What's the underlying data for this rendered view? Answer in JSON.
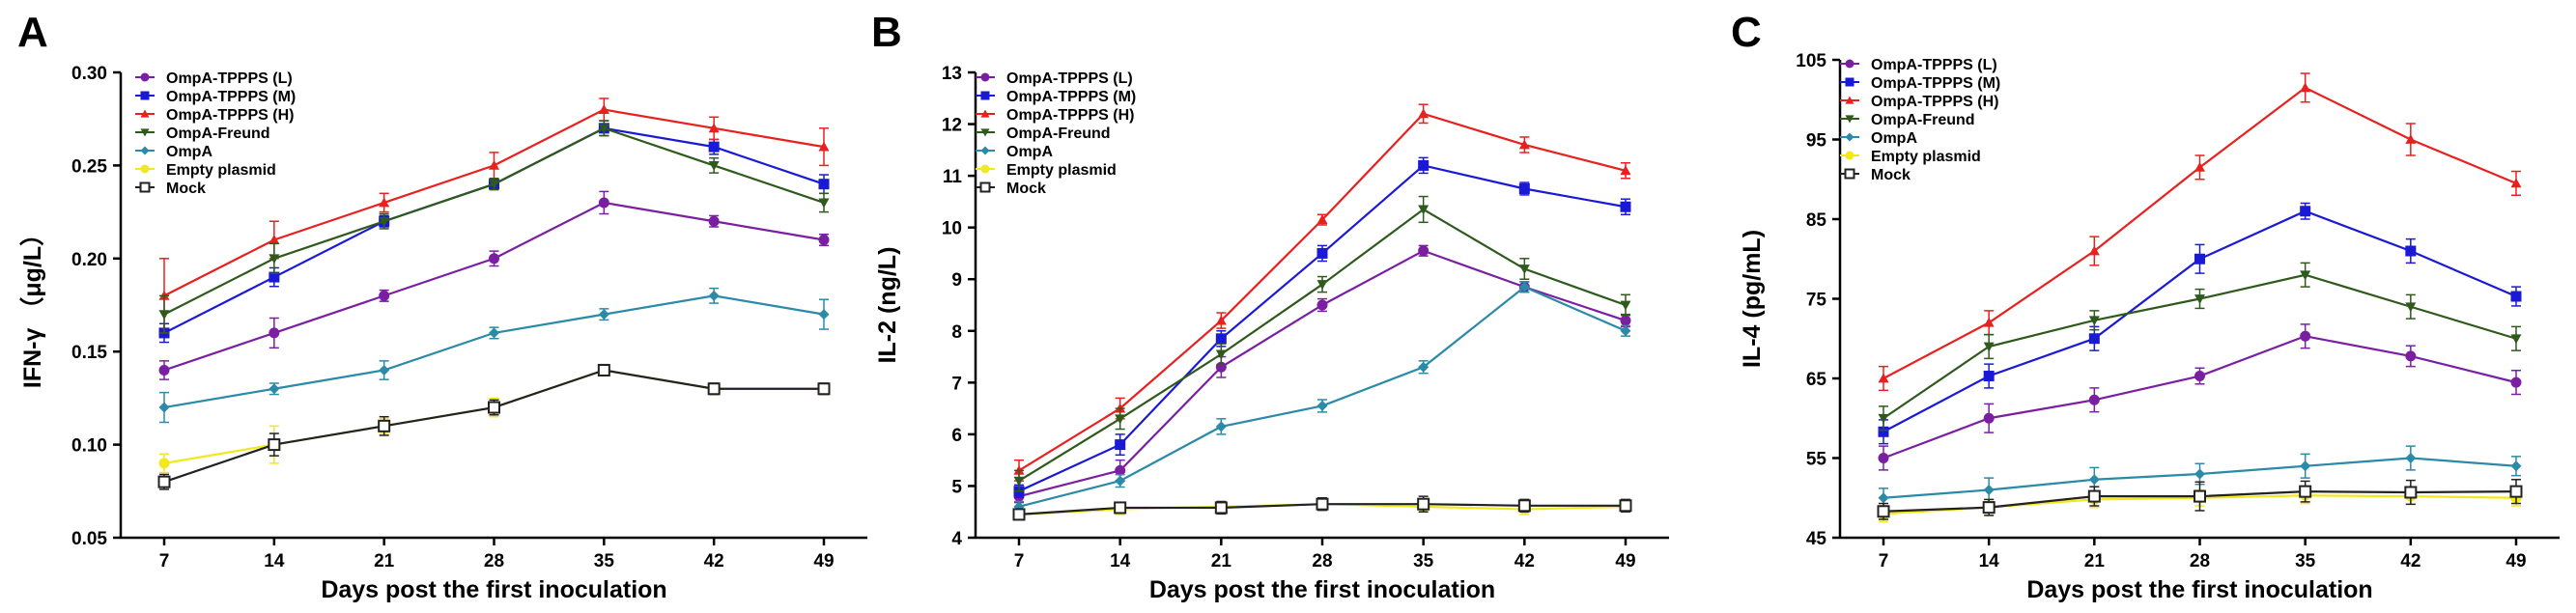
{
  "chart_data": [
    {
      "panel": "A",
      "type": "line",
      "xlabel": "Days post the first inoculation",
      "ylabel": "IFN-γ （μg/L）",
      "categories": [
        "7",
        "14",
        "21",
        "28",
        "35",
        "42",
        "49"
      ],
      "ylim": [
        0.05,
        0.3
      ],
      "yticks": [
        "0.05",
        "0.10",
        "0.15",
        "0.20",
        "0.25",
        "0.30"
      ],
      "ytick_values": [
        0.05,
        0.1,
        0.15,
        0.2,
        0.25,
        0.3
      ],
      "series": [
        {
          "name": "OmpA-TPPPS (L)",
          "color": "#7b1fa2",
          "marker": "circle",
          "values": [
            0.14,
            0.16,
            0.18,
            0.2,
            0.23,
            0.22,
            0.21
          ],
          "errors": [
            0.005,
            0.008,
            0.003,
            0.004,
            0.006,
            0.003,
            0.003
          ]
        },
        {
          "name": "OmpA-TPPPS (M)",
          "color": "#1a1ad6",
          "marker": "square",
          "values": [
            0.16,
            0.19,
            0.22,
            0.24,
            0.27,
            0.26,
            0.24
          ],
          "errors": [
            0.005,
            0.005,
            0.003,
            0.003,
            0.004,
            0.004,
            0.005
          ]
        },
        {
          "name": "OmpA-TPPPS (H)",
          "color": "#e8201e",
          "marker": "triangle",
          "values": [
            0.18,
            0.21,
            0.23,
            0.25,
            0.28,
            0.27,
            0.26
          ],
          "errors": [
            0.02,
            0.01,
            0.005,
            0.007,
            0.006,
            0.006,
            0.01
          ]
        },
        {
          "name": "OmpA-Freund",
          "color": "#2e5a1c",
          "marker": "triangle-down",
          "values": [
            0.17,
            0.2,
            0.22,
            0.24,
            0.27,
            0.25,
            0.23
          ],
          "errors": [
            0.01,
            0.008,
            0.004,
            0.003,
            0.004,
            0.004,
            0.005
          ]
        },
        {
          "name": "OmpA",
          "color": "#2a8aa8",
          "marker": "diamond",
          "values": [
            0.12,
            0.13,
            0.14,
            0.16,
            0.17,
            0.18,
            0.17
          ],
          "errors": [
            0.008,
            0.003,
            0.005,
            0.003,
            0.003,
            0.004,
            0.008
          ]
        },
        {
          "name": "Empty plasmid",
          "color": "#f2e81e",
          "marker": "circle",
          "values": [
            0.09,
            0.1,
            0.11,
            0.12,
            0.14,
            0.13,
            0.13
          ],
          "errors": [
            0.005,
            0.01,
            0.004,
            0.005,
            0.003,
            0.003,
            0.003
          ]
        },
        {
          "name": "Mock",
          "color": "#222222",
          "marker": "square-open",
          "values": [
            0.08,
            0.1,
            0.11,
            0.12,
            0.14,
            0.13,
            0.13
          ],
          "errors": [
            0.004,
            0.006,
            0.005,
            0.004,
            0.003,
            0.003,
            0.003
          ]
        }
      ]
    },
    {
      "panel": "B",
      "type": "line",
      "xlabel": "Days post the first inoculation",
      "ylabel": "IL-2 (ng/L)",
      "categories": [
        "7",
        "14",
        "21",
        "28",
        "35",
        "42",
        "49"
      ],
      "ylim": [
        4,
        13
      ],
      "yticks": [
        "4",
        "5",
        "6",
        "7",
        "8",
        "9",
        "10",
        "11",
        "12",
        "13"
      ],
      "ytick_values": [
        4,
        5,
        6,
        7,
        8,
        9,
        10,
        11,
        12,
        13
      ],
      "series": [
        {
          "name": "OmpA-TPPPS (L)",
          "color": "#7b1fa2",
          "marker": "circle",
          "values": [
            4.8,
            5.3,
            7.3,
            8.5,
            9.55,
            8.85,
            8.2
          ],
          "errors": [
            0.12,
            0.2,
            0.2,
            0.12,
            0.1,
            0.1,
            0.12
          ]
        },
        {
          "name": "OmpA-TPPPS (M)",
          "color": "#1a1ad6",
          "marker": "square",
          "values": [
            4.9,
            5.8,
            7.85,
            9.5,
            11.2,
            10.75,
            10.4
          ],
          "errors": [
            0.12,
            0.2,
            0.15,
            0.15,
            0.15,
            0.12,
            0.15
          ]
        },
        {
          "name": "OmpA-TPPPS (H)",
          "color": "#e8201e",
          "marker": "triangle",
          "values": [
            5.3,
            6.5,
            8.2,
            10.15,
            12.2,
            11.6,
            11.1
          ],
          "errors": [
            0.2,
            0.2,
            0.15,
            0.1,
            0.18,
            0.15,
            0.15
          ]
        },
        {
          "name": "OmpA-Freund",
          "color": "#2e5a1c",
          "marker": "triangle-down",
          "values": [
            5.1,
            6.3,
            7.55,
            8.9,
            10.35,
            9.2,
            8.5
          ],
          "errors": [
            0.2,
            0.2,
            0.2,
            0.15,
            0.25,
            0.2,
            0.2
          ]
        },
        {
          "name": "OmpA",
          "color": "#2a8aa8",
          "marker": "diamond",
          "values": [
            4.6,
            5.1,
            6.15,
            6.55,
            7.3,
            8.85,
            8.0
          ],
          "errors": [
            0.1,
            0.12,
            0.15,
            0.12,
            0.12,
            0.1,
            0.1
          ]
        },
        {
          "name": "Empty plasmid",
          "color": "#f2e81e",
          "marker": "circle",
          "values": [
            4.45,
            4.55,
            4.6,
            4.65,
            4.6,
            4.55,
            4.6
          ],
          "errors": [
            0.1,
            0.1,
            0.1,
            0.1,
            0.1,
            0.1,
            0.1
          ]
        },
        {
          "name": "Mock",
          "color": "#222222",
          "marker": "square-open",
          "values": [
            4.45,
            4.58,
            4.58,
            4.65,
            4.65,
            4.62,
            4.62
          ],
          "errors": [
            0.1,
            0.1,
            0.12,
            0.12,
            0.15,
            0.12,
            0.12
          ]
        }
      ]
    },
    {
      "panel": "C",
      "type": "line",
      "xlabel": "Days post the first inoculation",
      "ylabel": "IL-4 (pg/mL)",
      "categories": [
        "7",
        "14",
        "21",
        "28",
        "35",
        "42",
        "49"
      ],
      "ylim": [
        45,
        105
      ],
      "yticks": [
        "45",
        "55",
        "65",
        "75",
        "85",
        "95",
        "105"
      ],
      "ytick_values": [
        45,
        55,
        65,
        75,
        85,
        95,
        105
      ],
      "series": [
        {
          "name": "OmpA-TPPPS (L)",
          "color": "#7b1fa2",
          "marker": "circle",
          "values": [
            55.0,
            60.0,
            62.3,
            65.3,
            70.3,
            67.8,
            64.5
          ],
          "errors": [
            1.5,
            1.8,
            1.5,
            1.0,
            1.5,
            1.3,
            1.5
          ]
        },
        {
          "name": "OmpA-TPPPS (M)",
          "color": "#1a1ad6",
          "marker": "square",
          "values": [
            58.3,
            65.3,
            70.0,
            80.0,
            86.0,
            81.0,
            75.3
          ],
          "errors": [
            1.5,
            1.5,
            1.5,
            1.8,
            1.0,
            1.5,
            1.2
          ]
        },
        {
          "name": "OmpA-TPPPS (H)",
          "color": "#e8201e",
          "marker": "triangle",
          "values": [
            65.0,
            72.0,
            81.0,
            91.5,
            101.5,
            95.0,
            89.5
          ],
          "errors": [
            1.5,
            1.5,
            1.8,
            1.5,
            1.8,
            2.0,
            1.5
          ]
        },
        {
          "name": "OmpA-Freund",
          "color": "#2e5a1c",
          "marker": "triangle-down",
          "values": [
            60.0,
            69.0,
            72.3,
            75.0,
            78.0,
            74.0,
            70.0
          ],
          "errors": [
            1.5,
            1.5,
            1.2,
            1.2,
            1.5,
            1.5,
            1.5
          ]
        },
        {
          "name": "OmpA",
          "color": "#2a8aa8",
          "marker": "diamond",
          "values": [
            50.0,
            51.0,
            52.3,
            53.0,
            54.0,
            55.0,
            54.0
          ],
          "errors": [
            1.2,
            1.5,
            1.5,
            1.3,
            1.5,
            1.5,
            1.2
          ]
        },
        {
          "name": "Empty plasmid",
          "color": "#f2e81e",
          "marker": "circle",
          "values": [
            48.0,
            48.8,
            49.8,
            50.0,
            50.3,
            50.2,
            50.0
          ],
          "errors": [
            1.0,
            1.0,
            1.0,
            1.0,
            1.0,
            1.0,
            1.0
          ]
        },
        {
          "name": "Mock",
          "color": "#222222",
          "marker": "square-open",
          "values": [
            48.3,
            48.8,
            50.2,
            50.2,
            50.8,
            50.7,
            50.8
          ],
          "errors": [
            1.0,
            1.0,
            1.2,
            1.8,
            1.3,
            1.5,
            1.5
          ]
        }
      ]
    }
  ]
}
